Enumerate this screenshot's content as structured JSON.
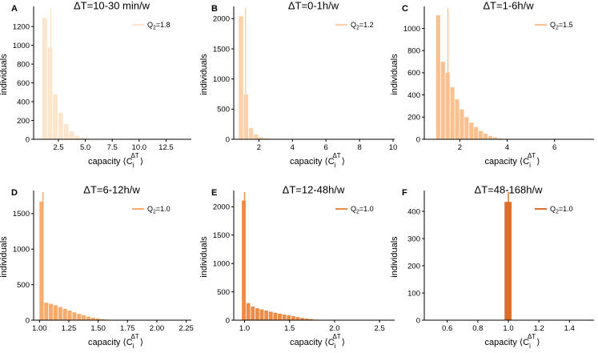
{
  "chart_data": [
    {
      "type": "bar",
      "letter": "A",
      "title": "ΔT=10-30 min/w",
      "xlabel": "capacity ⟨C",
      "xlabel_sub": "i",
      "xlabel_sup": "ΔT",
      "xlabel_end": "⟩",
      "ylabel": "individuals",
      "legend": {
        "label": "Q",
        "sub": "2",
        "value": "=1.8"
      },
      "color": "#fbe5cc",
      "q2_line": 1.8,
      "xlim": [
        0.2,
        14.7
      ],
      "ylim": [
        0,
        1380
      ],
      "xticks": [
        2.5,
        5.0,
        7.5,
        10.0,
        12.5
      ],
      "xtick_labels": [
        "2.5",
        "5.0",
        "7.5",
        "10.0",
        "12.5"
      ],
      "yticks": [
        0,
        200,
        400,
        600,
        800,
        1000,
        1200
      ],
      "ytick_labels": [
        "0",
        "200",
        "400",
        "600",
        "800",
        "1000",
        "1200"
      ],
      "bin_start": 1.0,
      "bin_width": 0.5,
      "values": [
        1290,
        975,
        480,
        280,
        160,
        85,
        40,
        18,
        8,
        4,
        2,
        1,
        1,
        0,
        0,
        0,
        0,
        0,
        0,
        0,
        0,
        0,
        0,
        0,
        0
      ]
    },
    {
      "type": "bar",
      "letter": "B",
      "title": "ΔT=0-1h/w",
      "xlabel": "capacity ⟨C",
      "xlabel_sub": "i",
      "xlabel_sup": "ΔT",
      "xlabel_end": "⟩",
      "ylabel": "individuals",
      "legend": {
        "label": "Q",
        "sub": "2",
        "value": "=1.2"
      },
      "color": "#fbd1ac",
      "q2_line": 1.2,
      "xlim": [
        0.5,
        10.0
      ],
      "ylim": [
        0,
        2150
      ],
      "xticks": [
        2,
        4,
        6,
        8,
        10
      ],
      "xtick_labels": [
        "2",
        "4",
        "6",
        "8",
        "10"
      ],
      "yticks": [
        0,
        500,
        1000,
        1500,
        2000
      ],
      "ytick_labels": [
        "0",
        "500",
        "1000",
        "1500",
        "2000"
      ],
      "bin_start": 0.8,
      "bin_width": 0.3,
      "values": [
        2040,
        740,
        190,
        80,
        35,
        15,
        8,
        4,
        2,
        1
      ]
    },
    {
      "type": "bar",
      "letter": "C",
      "title": "ΔT=1-6h/w",
      "xlabel": "capacity ⟨C",
      "xlabel_sub": "i",
      "xlabel_sup": "ΔT",
      "xlabel_end": "⟩",
      "ylabel": "individuals",
      "legend": {
        "label": "Q",
        "sub": "2",
        "value": "=1.5"
      },
      "color": "#fbc08e",
      "q2_line": 1.5,
      "xlim": [
        0.5,
        7.6
      ],
      "ylim": [
        0,
        1170
      ],
      "xticks": [
        2,
        4,
        6
      ],
      "xtick_labels": [
        "2",
        "4",
        "6"
      ],
      "yticks": [
        0,
        200,
        400,
        600,
        800,
        1000
      ],
      "ytick_labels": [
        "0",
        "200",
        "400",
        "600",
        "800",
        "1000"
      ],
      "bin_start": 1.0,
      "bin_width": 0.2,
      "values": [
        1120,
        700,
        600,
        470,
        360,
        270,
        200,
        150,
        110,
        75,
        50,
        30,
        18,
        8,
        3
      ]
    },
    {
      "type": "bar",
      "letter": "D",
      "title": "ΔT=6-12h/w",
      "xlabel": "capacity ⟨C",
      "xlabel_sub": "i",
      "xlabel_sup": "ΔT",
      "xlabel_end": "⟩",
      "ylabel": "individuals",
      "legend": {
        "label": "Q",
        "sub": "2",
        "value": "=1.0"
      },
      "color": "#f7aa69",
      "q2_line": 1.03,
      "xlim": [
        0.95,
        2.28
      ],
      "ylim": [
        0,
        1780
      ],
      "xticks": [
        1.0,
        1.25,
        1.5,
        1.75,
        2.0,
        2.25
      ],
      "xtick_labels": [
        "1.00",
        "1.25",
        "1.50",
        "1.75",
        "2.00",
        "2.25"
      ],
      "yticks": [
        0,
        500,
        1000,
        1500
      ],
      "ytick_labels": [
        "0",
        "500",
        "1000",
        "1500"
      ],
      "bin_start": 1.0,
      "bin_width": 0.04,
      "values": [
        1670,
        245,
        230,
        210,
        185,
        160,
        135,
        110,
        90,
        70,
        50,
        35,
        25,
        15,
        8,
        4,
        1
      ]
    },
    {
      "type": "bar",
      "letter": "E",
      "title": "ΔT=12-48h/w",
      "xlabel": "capacity ⟨C",
      "xlabel_sub": "i",
      "xlabel_sup": "ΔT",
      "xlabel_end": "⟩",
      "ylabel": "individuals",
      "legend": {
        "label": "Q",
        "sub": "2",
        "value": "=1.0"
      },
      "color": "#ee8b46",
      "q2_line": 1.0,
      "xlim": [
        0.88,
        2.65
      ],
      "ylim": [
        0,
        2230
      ],
      "xticks": [
        1.0,
        1.5,
        2.0,
        2.5
      ],
      "xtick_labels": [
        "1.0",
        "1.5",
        "2.0",
        "2.5"
      ],
      "yticks": [
        0,
        500,
        1000,
        1500,
        2000
      ],
      "ytick_labels": [
        "0",
        "500",
        "1000",
        "1500",
        "2000"
      ],
      "bin_start": 0.97,
      "bin_width": 0.05,
      "values": [
        2110,
        300,
        240,
        210,
        190,
        170,
        150,
        130,
        115,
        100,
        85,
        70,
        55,
        40,
        30,
        20,
        10,
        5,
        2,
        1,
        0,
        0,
        0,
        0,
        0,
        0,
        0,
        0,
        0,
        0,
        0,
        0,
        0,
        0,
        0
      ]
    },
    {
      "type": "bar",
      "letter": "F",
      "title": "ΔT=48-168h/w",
      "xlabel": "capacity ⟨C",
      "xlabel_sub": "i",
      "xlabel_sup": "ΔT",
      "xlabel_end": "⟩",
      "ylabel": "individuals",
      "legend": {
        "label": "Q",
        "sub": "2",
        "value": "=1.0"
      },
      "color": "#db6e2e",
      "q2_line": 1.0,
      "xlim": [
        0.45,
        1.55
      ],
      "ylim": [
        0,
        465
      ],
      "xticks": [
        0.6,
        0.8,
        1.0,
        1.2,
        1.4
      ],
      "xtick_labels": [
        "0.6",
        "0.8",
        "1.0",
        "1.2",
        "1.4"
      ],
      "yticks": [
        0,
        100,
        200,
        300,
        400
      ],
      "ytick_labels": [
        "0",
        "100",
        "200",
        "300",
        "400"
      ],
      "bin_start": 0.975,
      "bin_width": 0.05,
      "values": [
        435
      ]
    }
  ]
}
